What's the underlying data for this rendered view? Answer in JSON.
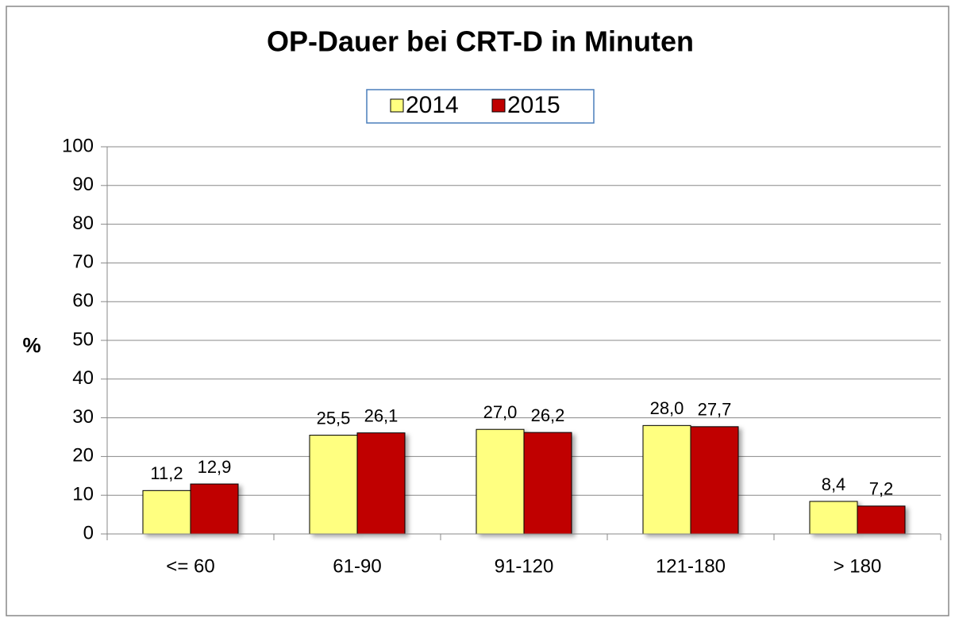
{
  "chart_data": {
    "type": "bar",
    "title": "OP-Dauer bei CRT-D in Minuten",
    "y_label": "%",
    "categories": [
      "<= 60",
      "61-90",
      "91-120",
      "121-180",
      "> 180"
    ],
    "series": [
      {
        "name": "2014",
        "color": "#ffff80",
        "values": [
          11.2,
          25.5,
          27.0,
          28.0,
          8.4
        ],
        "value_labels": [
          "11,2",
          "25,5",
          "27,0",
          "28,0",
          "8,4"
        ]
      },
      {
        "name": "2015",
        "color": "#c00000",
        "values": [
          12.9,
          26.1,
          26.2,
          27.7,
          7.2
        ],
        "value_labels": [
          "12,9",
          "26,1",
          "26,2",
          "27,7",
          "7,2"
        ]
      }
    ],
    "ylim": [
      0,
      100
    ],
    "yticks": [
      0,
      10,
      20,
      30,
      40,
      50,
      60,
      70,
      80,
      90,
      100
    ],
    "grid": true,
    "legend": "top"
  }
}
